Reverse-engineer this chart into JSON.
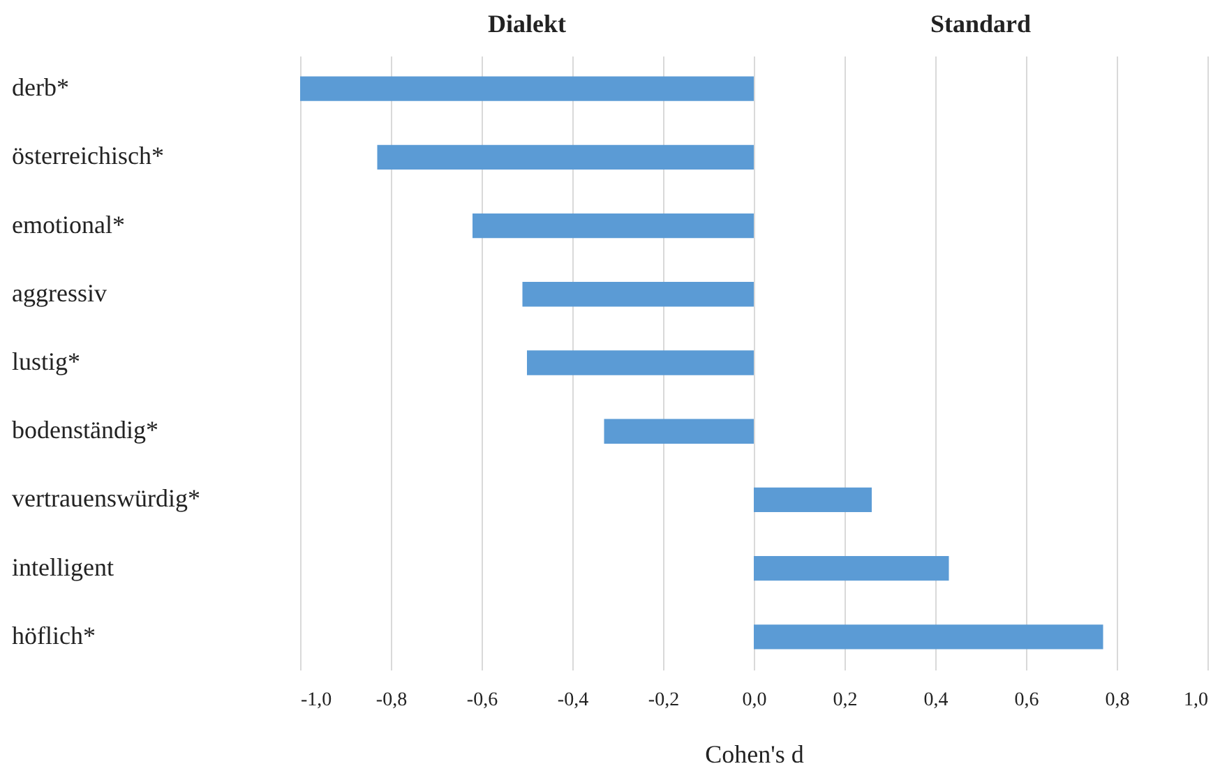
{
  "chart_data": {
    "type": "bar",
    "orientation": "horizontal",
    "categories": [
      "derb*",
      "österreichisch*",
      "emotional*",
      "aggressiv",
      "lustig*",
      "bodenständig*",
      "vertrauenswürdig*",
      "intelligent",
      "höflich*"
    ],
    "values": [
      -1.0,
      -0.83,
      -0.62,
      -0.51,
      -0.5,
      -0.33,
      0.26,
      0.43,
      0.77
    ],
    "color": "#5b9bd5",
    "xlabel": "Cohen's d",
    "xlim": [
      -1.0,
      1.0
    ],
    "xticks": [
      {
        "value": -1.0,
        "label": "-1,0"
      },
      {
        "value": -0.8,
        "label": "-0,8"
      },
      {
        "value": -0.6,
        "label": "-0,6"
      },
      {
        "value": -0.4,
        "label": "-0,4"
      },
      {
        "value": -0.2,
        "label": "-0,2"
      },
      {
        "value": 0,
        "label": "0,0"
      },
      {
        "value": 0.2,
        "label": "0,2"
      },
      {
        "value": 0.4,
        "label": "0,4"
      },
      {
        "value": 0.6,
        "label": "0,6"
      },
      {
        "value": 0.8,
        "label": "0,8"
      },
      {
        "value": 1.0,
        "label": "1,0"
      }
    ],
    "annotations": [
      "Dialekt",
      "Standard"
    ],
    "grid": "x"
  }
}
